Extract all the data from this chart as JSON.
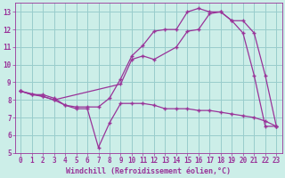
{
  "bg_color": "#cceee8",
  "grid_color": "#99cccc",
  "line_color": "#993399",
  "xlabel": "Windchill (Refroidissement éolien,°C)",
  "ylim": [
    5,
    13.5
  ],
  "xlim": [
    -0.5,
    23.5
  ],
  "yticks": [
    5,
    6,
    7,
    8,
    9,
    10,
    11,
    12,
    13
  ],
  "xticks": [
    0,
    1,
    2,
    3,
    4,
    5,
    6,
    7,
    8,
    9,
    10,
    11,
    12,
    13,
    14,
    15,
    16,
    17,
    18,
    19,
    20,
    21,
    22,
    23
  ],
  "series_A_x": [
    0,
    1,
    2,
    3,
    4,
    5,
    6,
    7,
    8,
    9,
    10,
    11,
    12,
    13,
    14,
    15,
    16,
    17,
    18,
    19,
    20,
    21,
    22,
    23
  ],
  "series_A_y": [
    8.5,
    8.3,
    8.3,
    8.1,
    7.7,
    7.6,
    7.6,
    7.6,
    8.1,
    9.2,
    10.5,
    11.1,
    11.9,
    12.0,
    12.0,
    13.0,
    13.2,
    13.0,
    13.0,
    12.5,
    11.8,
    9.4,
    6.5,
    6.5
  ],
  "series_B_x": [
    0,
    1,
    2,
    3,
    4,
    5,
    6,
    7,
    8,
    9,
    10,
    11,
    12,
    13,
    14,
    15,
    16,
    17,
    18,
    19,
    20,
    21,
    22,
    23
  ],
  "series_B_y": [
    8.5,
    8.3,
    8.2,
    8.0,
    7.7,
    7.5,
    7.5,
    5.3,
    6.7,
    7.8,
    7.8,
    7.8,
    7.7,
    7.5,
    7.5,
    7.5,
    7.4,
    7.4,
    7.3,
    7.2,
    7.1,
    7.0,
    6.8,
    6.5
  ],
  "series_C_x": [
    0,
    2,
    3,
    9,
    10,
    11,
    12,
    14,
    15,
    16,
    17,
    18,
    19,
    20,
    21,
    22,
    23
  ],
  "series_C_y": [
    8.5,
    8.2,
    8.0,
    8.9,
    10.3,
    10.5,
    10.3,
    11.0,
    11.9,
    12.0,
    12.9,
    13.0,
    12.5,
    12.5,
    11.8,
    9.4,
    6.5
  ]
}
